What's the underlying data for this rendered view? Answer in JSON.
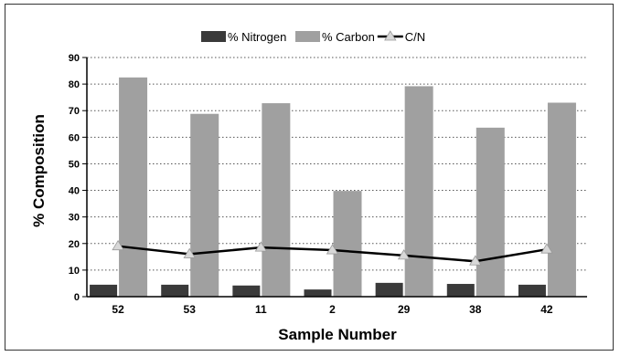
{
  "chart_data": {
    "type": "bar",
    "categories": [
      "52",
      "53",
      "11",
      "2",
      "29",
      "38",
      "42"
    ],
    "series": [
      {
        "name": "% Nitrogen",
        "kind": "bar",
        "color": "#3a3a3a",
        "values": [
          4.5,
          4.5,
          4.2,
          2.7,
          5.2,
          4.8,
          4.5
        ]
      },
      {
        "name": "% Carbon",
        "kind": "bar",
        "color": "#a0a0a0",
        "values": [
          82.5,
          68.8,
          72.8,
          39.8,
          79.2,
          63.6,
          73.0
        ]
      },
      {
        "name": "C/N",
        "kind": "line",
        "color": "#000000",
        "marker": "triangle",
        "values": [
          19.0,
          16.0,
          18.5,
          17.5,
          15.5,
          13.3,
          17.8
        ]
      }
    ],
    "xlabel": "Sample Number",
    "ylabel": "% Composition",
    "ylim": [
      0,
      90
    ],
    "yticks": [
      "0",
      "10",
      "20",
      "30",
      "40",
      "50",
      "60",
      "70",
      "80",
      "90"
    ],
    "grid": "horizontal dotted",
    "legend_position": "top-center"
  }
}
